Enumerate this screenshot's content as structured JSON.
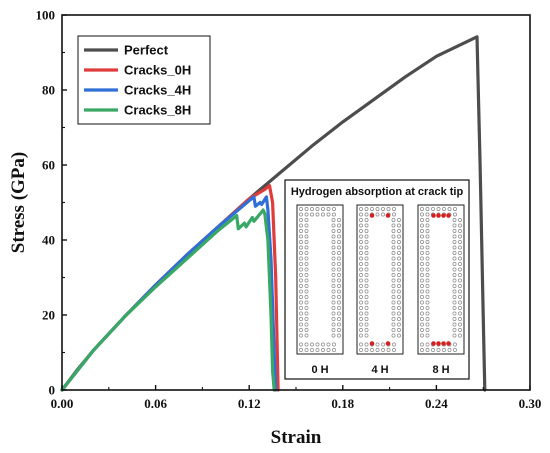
{
  "chart_data": {
    "type": "line",
    "title": "",
    "xlabel": "Strain",
    "ylabel": "Stress (GPa)",
    "xlim": [
      0,
      0.3
    ],
    "ylim": [
      0,
      100
    ],
    "xticks": [
      0.0,
      0.06,
      0.12,
      0.18,
      0.24,
      0.3
    ],
    "xtick_labels": [
      "0.00",
      "0.06",
      "0.12",
      "0.18",
      "0.24",
      "0.30"
    ],
    "yticks": [
      0,
      20,
      40,
      60,
      80,
      100
    ],
    "ytick_labels": [
      "0",
      "20",
      "40",
      "60",
      "80",
      "100"
    ],
    "grid": false,
    "legend_position": "top-left",
    "series": [
      {
        "name": "Perfect",
        "color": "#4d4d4d",
        "x": [
          0,
          0.01,
          0.02,
          0.04,
          0.06,
          0.08,
          0.1,
          0.12,
          0.14,
          0.16,
          0.18,
          0.2,
          0.22,
          0.24,
          0.266,
          0.268,
          0.27,
          0.271
        ],
        "y": [
          0,
          5.5,
          10.5,
          19.5,
          28,
          36,
          43.5,
          51,
          58,
          65,
          71.5,
          77.5,
          83.5,
          89,
          94.2,
          60,
          20,
          0
        ]
      },
      {
        "name": "Cracks_0H",
        "color": "#e03c3c",
        "x": [
          0,
          0.02,
          0.04,
          0.06,
          0.08,
          0.1,
          0.12,
          0.13,
          0.133,
          0.135,
          0.137,
          0.138,
          0.1385
        ],
        "y": [
          0,
          10.5,
          19.5,
          28,
          36,
          43.5,
          51,
          53.5,
          54.5,
          50,
          30,
          10,
          0
        ]
      },
      {
        "name": "Cracks_4H",
        "color": "#2f6fd6",
        "x": [
          0,
          0.02,
          0.04,
          0.06,
          0.08,
          0.1,
          0.12,
          0.123,
          0.124,
          0.127,
          0.128,
          0.131,
          0.132,
          0.134,
          0.136,
          0.137
        ],
        "y": [
          0,
          10.5,
          19.5,
          28,
          36,
          43.5,
          50.5,
          51.5,
          49,
          50,
          49.5,
          51.5,
          48,
          35,
          10,
          0
        ]
      },
      {
        "name": "Cracks_8H",
        "color": "#3aa865",
        "x": [
          0,
          0.02,
          0.04,
          0.06,
          0.08,
          0.1,
          0.112,
          0.113,
          0.117,
          0.118,
          0.122,
          0.123,
          0.128,
          0.129,
          0.13,
          0.132,
          0.134,
          0.135,
          0.136
        ],
        "y": [
          0,
          10.5,
          19.5,
          27.5,
          35,
          42.5,
          46.5,
          43,
          44.5,
          43.5,
          46,
          45,
          47.5,
          48,
          47,
          40,
          20,
          5,
          0
        ]
      }
    ],
    "inset": {
      "title": "Hydrogen absorption at crack tip",
      "panels": [
        {
          "label": "0 H",
          "hydrogen_top": 0,
          "hydrogen_bottom": 0
        },
        {
          "label": "4 H",
          "hydrogen_top": 2,
          "hydrogen_bottom": 2
        },
        {
          "label": "8 H",
          "hydrogen_top": 4,
          "hydrogen_bottom": 4
        }
      ],
      "hydrogen_color": "#d42020"
    }
  }
}
